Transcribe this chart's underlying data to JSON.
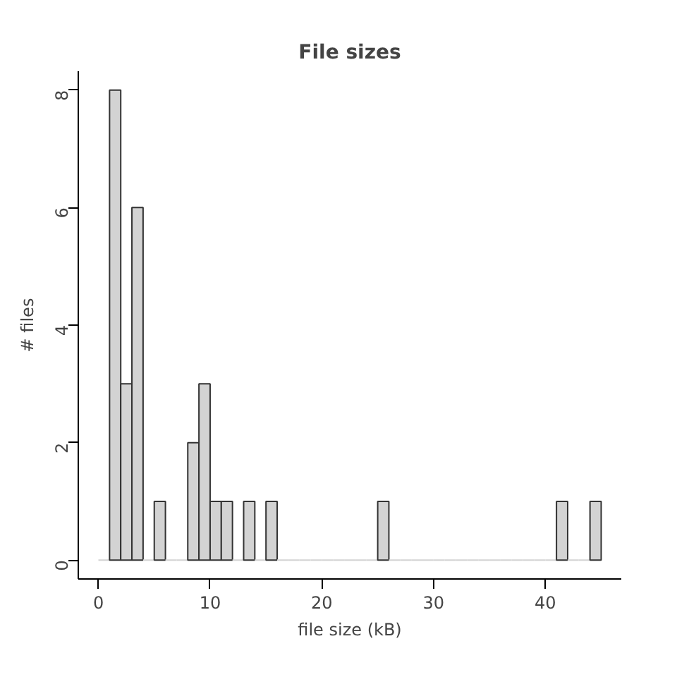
{
  "chart_data": {
    "type": "histogram",
    "title": "File sizes",
    "xlabel": "file size (kB)",
    "ylabel": "# files",
    "bins": [
      0,
      1,
      2,
      3,
      4,
      5,
      6,
      7,
      8,
      9,
      10,
      11,
      12,
      13,
      14,
      15,
      16,
      17,
      18,
      19,
      20,
      21,
      22,
      23,
      24,
      25,
      26,
      27,
      28,
      29,
      30,
      31,
      32,
      33,
      34,
      35,
      36,
      37,
      38,
      39,
      40,
      41,
      42,
      43,
      44,
      45
    ],
    "values": [
      0,
      8,
      3,
      6,
      0,
      1,
      0,
      0,
      2,
      3,
      1,
      1,
      0,
      1,
      0,
      1,
      0,
      0,
      0,
      0,
      0,
      0,
      0,
      0,
      0,
      1,
      0,
      0,
      0,
      0,
      0,
      0,
      0,
      0,
      0,
      0,
      0,
      0,
      0,
      0,
      0,
      1,
      0,
      0,
      1
    ],
    "color": "#d3d3d3",
    "xlim": [
      -1.8,
      46.8
    ],
    "ylim": [
      -0.32,
      8.32
    ],
    "xticks": [
      0,
      10,
      20,
      30,
      40
    ],
    "yticks": [
      0,
      2,
      4,
      6,
      8
    ],
    "grid": false
  }
}
